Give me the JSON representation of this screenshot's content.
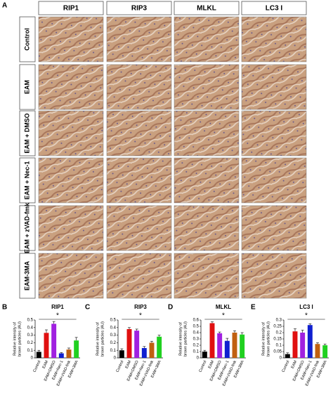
{
  "panel_a": {
    "label": "A",
    "columns": [
      "RIP1",
      "RIP3",
      "MLKL",
      "LC3 I"
    ],
    "rows": [
      "Control",
      "EAM",
      "EAM + DMSO",
      "EAM + Nec-1",
      "EAM + zVAD-fmk",
      "EAM-3MA"
    ]
  },
  "chart_data": [
    {
      "type": "bar",
      "panel_label": "B",
      "title": "RIP1",
      "ylabel": [
        "Relative intensity of",
        "brown particles (AU)"
      ],
      "annotation": "*",
      "categories": [
        "Control",
        "EAM",
        "EAM+DMSO",
        "EAM+Nec-1",
        "EAM+zVAD-fmk",
        "EAM+3MA"
      ],
      "values": [
        0.08,
        0.33,
        0.45,
        0.06,
        0.11,
        0.23
      ],
      "errors": [
        0.02,
        0.04,
        0.03,
        0.01,
        0.02,
        0.04
      ],
      "colors": [
        "#000000",
        "#e01010",
        "#a020e0",
        "#1020d0",
        "#c06010",
        "#20d020"
      ],
      "ylim": [
        0,
        0.5
      ],
      "yticks": [
        0,
        0.1,
        0.2,
        0.3,
        0.4,
        0.5
      ]
    },
    {
      "type": "bar",
      "panel_label": "C",
      "title": "RIP3",
      "ylabel": [
        "Relative intensity of",
        "brown particles (AU)"
      ],
      "annotation": "*",
      "categories": [
        "Control",
        "EAM",
        "EAM+DMSO",
        "EAM+Nec-1",
        "EAM+zVAD-fmk",
        "EAM+3MA"
      ],
      "values": [
        0.1,
        0.38,
        0.36,
        0.13,
        0.2,
        0.28
      ],
      "errors": [
        0.02,
        0.02,
        0.02,
        0.02,
        0.02,
        0.02
      ],
      "colors": [
        "#000000",
        "#e01010",
        "#a020e0",
        "#1020d0",
        "#c06010",
        "#20d020"
      ],
      "ylim": [
        0,
        0.5
      ],
      "yticks": [
        0,
        0.1,
        0.2,
        0.3,
        0.4,
        0.5
      ]
    },
    {
      "type": "bar",
      "panel_label": "D",
      "title": "MLKL",
      "ylabel": [
        "Relative intensity of",
        "brown particles (AU)"
      ],
      "annotation": "*",
      "categories": [
        "Control",
        "EAM",
        "EAM+DMSO",
        "EAM+Nec-1",
        "EAM+zVAD-fmk",
        "EAM+3MA"
      ],
      "values": [
        0.1,
        0.55,
        0.39,
        0.27,
        0.4,
        0.37
      ],
      "errors": [
        0.02,
        0.02,
        0.02,
        0.04,
        0.03,
        0.03
      ],
      "colors": [
        "#000000",
        "#e01010",
        "#a020e0",
        "#1020d0",
        "#c06010",
        "#20d020"
      ],
      "ylim": [
        0,
        0.6
      ],
      "yticks": [
        0,
        0.1,
        0.2,
        0.3,
        0.4,
        0.5,
        0.6
      ]
    },
    {
      "type": "bar",
      "panel_label": "E",
      "title": "LC3 I",
      "ylabel": [
        "Relative intensity of",
        "brown particles (AU)"
      ],
      "annotation": "*",
      "categories": [
        "Control",
        "EAM",
        "EAM+DMSO",
        "EAM+Nec-1",
        "EAM+zVAD-fmk",
        "EAM+3MA"
      ],
      "values": [
        0.03,
        0.21,
        0.2,
        0.26,
        0.11,
        0.1
      ],
      "errors": [
        0.01,
        0.02,
        0.02,
        0.01,
        0.01,
        0.01
      ],
      "colors": [
        "#000000",
        "#e01010",
        "#a020e0",
        "#1020d0",
        "#c06010",
        "#20d020"
      ],
      "ylim": [
        0,
        0.3
      ],
      "yticks": [
        0,
        0.05,
        0.1,
        0.15,
        0.2,
        0.25,
        0.3
      ]
    }
  ]
}
